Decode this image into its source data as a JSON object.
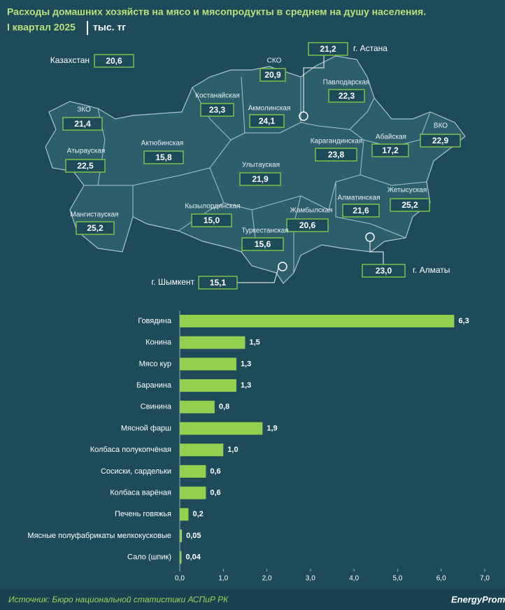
{
  "title": "Расходы домашних хозяйств на мясо и мясопродукты в среднем на душу населения.",
  "subtitle": "I квартал 2025",
  "unit": "тыс. тг",
  "source": "Источник: Бюро национальной статистики АСПиР РК",
  "logo": "EnergyProm",
  "chart_data": [
    {
      "type": "map",
      "color": "#7cc04a",
      "categories": [
        "Казахстан",
        "СКО",
        "г. Астана",
        "Павлодарская",
        "Костанайская",
        "Акмолинская",
        "ЗКО",
        "ВКО",
        "Абайская",
        "Атырауская",
        "Актюбинская",
        "Карагандинская",
        "Улытауская",
        "Жетысуская",
        "Алматинская",
        "Мангистауская",
        "Кызылординская",
        "Жамбылская",
        "Туркестанская",
        "г. Алматы",
        "г. Шымкент"
      ],
      "values": [
        20.6,
        20.9,
        21.2,
        22.3,
        23.3,
        24.1,
        21.4,
        22.9,
        17.2,
        22.5,
        15.8,
        23.8,
        21.9,
        25.2,
        21.6,
        25.2,
        15.0,
        20.6,
        15.6,
        23.0,
        15.1
      ],
      "value_labels": [
        "20,6",
        "20,9",
        "21,2",
        "22,3",
        "23,3",
        "24,1",
        "21,4",
        "22,9",
        "17,2",
        "22,5",
        "15,8",
        "23,8",
        "21,9",
        "25,2",
        "21,6",
        "25,2",
        "15,0",
        "20,6",
        "15,6",
        "23,0",
        "15,1"
      ]
    },
    {
      "type": "barh",
      "color": "#92d050",
      "categories": [
        "Говядина",
        "Конина",
        "Мясо кур",
        "Баранина",
        "Свинина",
        "Мясной фарш",
        "Колбаса полукопчёная",
        "Сосиски, сардельки",
        "Колбаса варёная",
        "Печень говяжья",
        "Мясные полуфабрикаты мелкокусковые",
        "Сало (шпик)"
      ],
      "values": [
        6.3,
        1.5,
        1.3,
        1.3,
        0.8,
        1.9,
        1.0,
        0.6,
        0.6,
        0.2,
        0.05,
        0.04
      ],
      "value_labels": [
        "6,3",
        "1,5",
        "1,3",
        "1,3",
        "0,8",
        "1,9",
        "1,0",
        "0,6",
        "0,6",
        "0,2",
        "0,05",
        "0,04"
      ],
      "xlim": [
        0,
        7
      ],
      "xticks": [
        {
          "value": 0,
          "label": "0,0"
        },
        {
          "value": 1,
          "label": "1,0"
        },
        {
          "value": 2,
          "label": "2,0"
        },
        {
          "value": 3,
          "label": "3,0"
        },
        {
          "value": 4,
          "label": "4,0"
        },
        {
          "value": 5,
          "label": "5,0"
        },
        {
          "value": 6,
          "label": "6,0"
        },
        {
          "value": 7,
          "label": "7,0"
        }
      ]
    }
  ]
}
